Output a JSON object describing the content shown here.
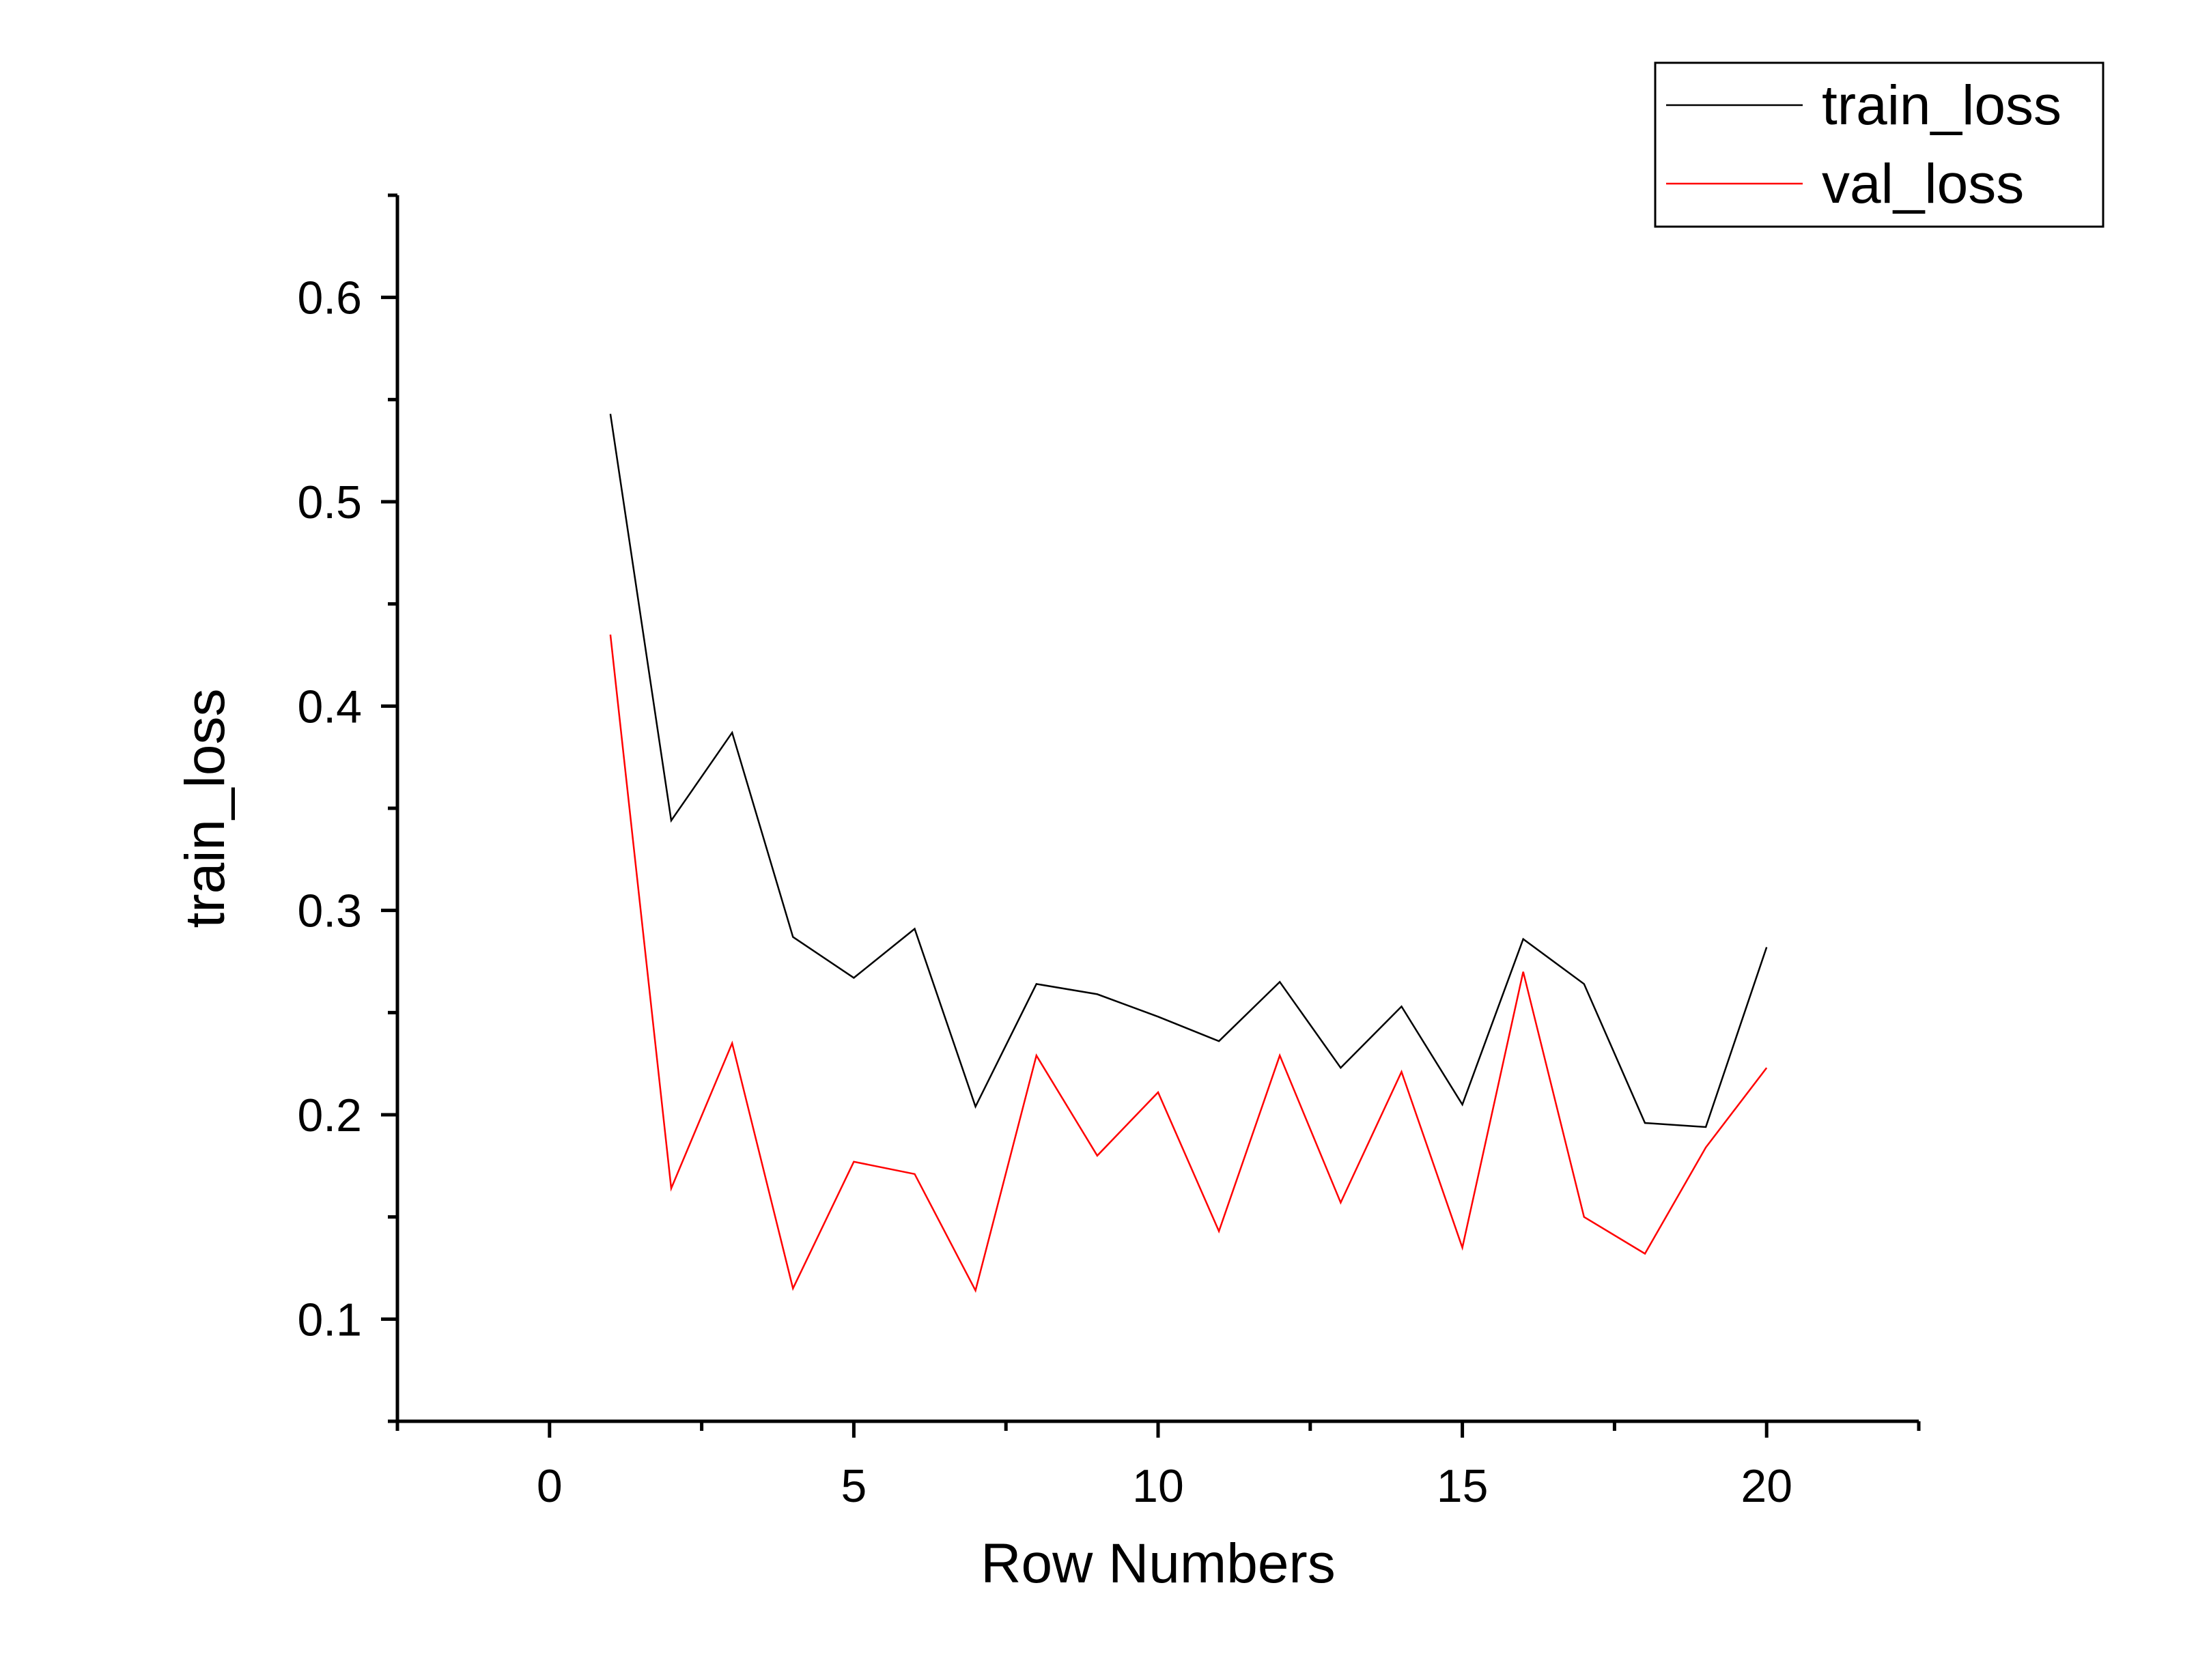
{
  "chart_data": {
    "type": "line",
    "xlabel": "Row Numbers",
    "ylabel": "train_loss",
    "xlim": [
      -2.5,
      22.5
    ],
    "ylim": [
      0.05,
      0.65
    ],
    "xticks": [
      0,
      5,
      10,
      15,
      20
    ],
    "xtick_labels": [
      "0",
      "5",
      "10",
      "15",
      "20"
    ],
    "yticks": [
      0.1,
      0.2,
      0.3,
      0.4,
      0.5,
      0.6
    ],
    "ytick_labels": [
      "0.1",
      "0.2",
      "0.3",
      "0.4",
      "0.5",
      "0.6"
    ],
    "grid": false,
    "legend_position": "top-right",
    "series": [
      {
        "name": "train_loss",
        "color": "#000000",
        "x": [
          1,
          2,
          3,
          4,
          5,
          6,
          7,
          8,
          9,
          10,
          11,
          12,
          13,
          14,
          15,
          16,
          17,
          18,
          19,
          20
        ],
        "values": [
          0.543,
          0.344,
          0.387,
          0.287,
          0.267,
          0.291,
          0.204,
          0.264,
          0.259,
          0.248,
          0.236,
          0.265,
          0.223,
          0.253,
          0.205,
          0.286,
          0.264,
          0.196,
          0.194,
          0.282
        ]
      },
      {
        "name": "val_loss",
        "color": "#ff0000",
        "x": [
          1,
          2,
          3,
          4,
          5,
          6,
          7,
          8,
          9,
          10,
          11,
          12,
          13,
          14,
          15,
          16,
          17,
          18,
          19,
          20
        ],
        "values": [
          0.435,
          0.164,
          0.235,
          0.115,
          0.177,
          0.171,
          0.114,
          0.229,
          0.18,
          0.211,
          0.143,
          0.229,
          0.157,
          0.221,
          0.135,
          0.27,
          0.15,
          0.132,
          0.184,
          0.223
        ]
      }
    ]
  }
}
